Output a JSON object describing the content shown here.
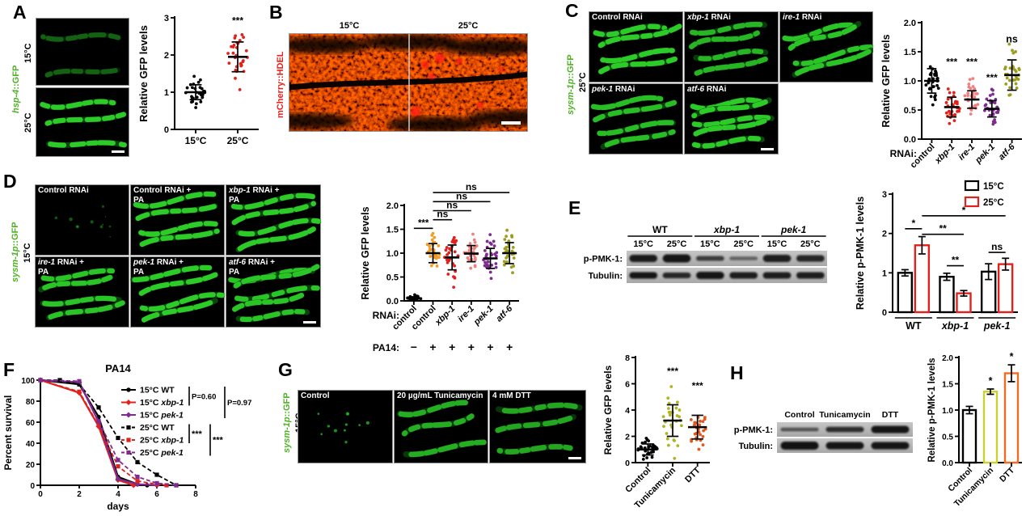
{
  "panels": {
    "A": {
      "letter": "A",
      "reporter": {
        "em": "hsp-4",
        "rest": "::GFP"
      },
      "reporter_color": "#4db324",
      "rows": [
        {
          "label": "15°C"
        },
        {
          "label": "25°C"
        }
      ]
    },
    "B": {
      "letter": "B",
      "reporter": {
        "em": "",
        "rest": "mCherry::HDEL"
      },
      "reporter_color": "#e8231f",
      "titles": [
        "15°C",
        "25°C"
      ]
    },
    "C": {
      "letter": "C",
      "reporter": {
        "em": "sysm-1p",
        "rest": "::GFP"
      },
      "reporter_color": "#4db324",
      "temp": "25°C",
      "cells": [
        {
          "em": "",
          "rest": "Control RNAi"
        },
        {
          "em": "xbp-1",
          "rest": " RNAi"
        },
        {
          "em": "ire-1",
          "rest": " RNAi"
        },
        {
          "em": "pek-1",
          "rest": " RNAi"
        },
        {
          "em": "atf-6",
          "rest": " RNAi"
        }
      ]
    },
    "D": {
      "letter": "D",
      "reporter": {
        "em": "sysm-1p",
        "rest": "::GFP"
      },
      "reporter_color": "#4db324",
      "temp": "15°C",
      "cells": [
        {
          "em": "",
          "rest": "Control RNAi"
        },
        {
          "em": "",
          "rest": "Control RNAi +",
          "line2": "PA"
        },
        {
          "em": "xbp-1",
          "rest": " RNAi +",
          "line2": "PA"
        },
        {
          "em": "ire-1",
          "rest": " RNAi +",
          "line2": "PA"
        },
        {
          "em": "pek-1",
          "rest": " RNAi +",
          "line2": "PA"
        },
        {
          "em": "atf-6",
          "rest": " RNAi +",
          "line2": "PA"
        }
      ]
    },
    "E": {
      "letter": "E",
      "blot": {
        "row_labels": [
          "p-PMK-1:",
          "Tubulin:"
        ],
        "groups": [
          {
            "name": "WT",
            "italic": false
          },
          {
            "name": "xbp-1",
            "italic": true
          },
          {
            "name": "pek-1",
            "italic": true
          }
        ],
        "lane_labels": [
          "15°C",
          "25°C"
        ],
        "bands": {
          "p_pmk1": {
            "th": [
              9,
              10,
              6,
              4.5,
              9,
              8
            ],
            "in": [
              0.92,
              0.95,
              0.72,
              0.5,
              0.9,
              0.85
            ]
          },
          "tubulin": {
            "th": [
              8,
              7,
              9,
              8,
              8,
              8
            ],
            "in": [
              0.95,
              0.85,
              0.95,
              0.9,
              0.9,
              0.9
            ]
          }
        }
      }
    },
    "F": {
      "letter": "F"
    },
    "G": {
      "letter": "G",
      "reporter": {
        "em": "sysm-1p",
        "rest": "::GFP"
      },
      "reporter_color": "#4db324",
      "temp": "15°C",
      "cells": [
        {
          "em": "",
          "rest": "Control"
        },
        {
          "em": "",
          "rest": "20 µg/mL Tunicamycin"
        },
        {
          "em": "",
          "rest": "4 mM DTT"
        }
      ]
    },
    "H": {
      "letter": "H",
      "blot": {
        "row_labels": [
          "p-PMK-1:",
          "Tubulin:"
        ],
        "lanes": [
          "Control",
          "Tunicamycin",
          "DTT"
        ],
        "bands": {
          "p_pmk1": {
            "th": [
              4.5,
              6.5,
              9
            ],
            "in": [
              0.6,
              0.82,
              0.95
            ]
          },
          "tubulin": {
            "th": [
              10,
              9,
              9
            ],
            "in": [
              0.97,
              0.95,
              0.95
            ]
          }
        }
      }
    }
  },
  "chart_data": {
    "A": {
      "type": "scatter",
      "ylabel": "Relative GFP levels",
      "ylim": [
        0,
        3
      ],
      "yticks": [
        0,
        1,
        2,
        3
      ],
      "ytick_labels": [
        "0",
        "1",
        "2",
        "3"
      ],
      "xstyle": "flat",
      "seed": 11,
      "groups": [
        {
          "label": "15°C",
          "italic": false,
          "color": "#000000",
          "mean": 1.0,
          "sd": 0.2,
          "n": 30
        },
        {
          "label": "25°C",
          "italic": false,
          "color": "#e2211c",
          "mean": 1.95,
          "sd": 0.4,
          "n": 30,
          "sig": "***",
          "sig_y": 2.84
        }
      ]
    },
    "C": {
      "type": "scatter",
      "ylabel": "Relative GFP levels",
      "ylim": [
        0,
        2
      ],
      "yticks": [
        0,
        0.5,
        1,
        1.5,
        2
      ],
      "ytick_labels": [
        "0.0",
        "0.5",
        "1.0",
        "1.5",
        "2.0"
      ],
      "xstyle": "rot",
      "xprefix": "RNAi:",
      "seed": 23,
      "groups": [
        {
          "label": "control",
          "italic": false,
          "color": "#000000",
          "mean": 1.0,
          "sd": 0.21,
          "n": 30
        },
        {
          "label": "xbp-1",
          "italic": true,
          "color": "#e2211c",
          "mean": 0.55,
          "sd": 0.17,
          "n": 30,
          "sig": "***",
          "sig_y": 1.27
        },
        {
          "label": "ire-1",
          "italic": true,
          "color": "#f08080",
          "mean": 0.68,
          "sd": 0.15,
          "n": 30,
          "sig": "***",
          "sig_y": 1.27
        },
        {
          "label": "pek-1",
          "italic": true,
          "color": "#7f2a8e",
          "mean": 0.52,
          "sd": 0.14,
          "n": 30,
          "sig": "***",
          "sig_y": 1.0
        },
        {
          "label": "atf-6",
          "italic": true,
          "color": "#9c9c1e",
          "mean": 1.1,
          "sd": 0.26,
          "n": 30,
          "sig": "ns",
          "sig_y": 1.66
        }
      ]
    },
    "D": {
      "type": "scatter",
      "ylabel": "Relative GFP levels",
      "ylim": [
        0,
        2
      ],
      "yticks": [
        0,
        0.5,
        1,
        1.5,
        2
      ],
      "ytick_labels": [
        "0.0",
        "0.5",
        "1.0",
        "1.5",
        "2.0"
      ],
      "xstyle": "rot",
      "xprefix": "RNAi:",
      "seed": 37,
      "groups": [
        {
          "label": "control",
          "italic": false,
          "color": "#000000",
          "mean": 0.05,
          "sd": 0.035,
          "n": 24
        },
        {
          "label": "control",
          "italic": false,
          "color": "#f49b27",
          "mean": 1.0,
          "sd": 0.2,
          "n": 30
        },
        {
          "label": "xbp-1",
          "italic": true,
          "color": "#e2211c",
          "mean": 0.91,
          "sd": 0.26,
          "n": 30
        },
        {
          "label": "ire-1",
          "italic": true,
          "color": "#f08080",
          "mean": 0.99,
          "sd": 0.17,
          "n": 30
        },
        {
          "label": "pek-1",
          "italic": true,
          "color": "#7f2a8e",
          "mean": 0.89,
          "sd": 0.21,
          "n": 30
        },
        {
          "label": "atf-6",
          "italic": true,
          "color": "#9c9c1e",
          "mean": 1.0,
          "sd": 0.22,
          "n": 30
        }
      ],
      "brackets": [
        {
          "a": 0,
          "b": 1,
          "y": 1.52,
          "t": "***"
        },
        {
          "a": 1,
          "b": 2,
          "y": 1.7,
          "t": "ns"
        },
        {
          "a": 1,
          "b": 3,
          "y": 1.89,
          "t": "ns"
        },
        {
          "a": 1,
          "b": 4,
          "y": 2.08,
          "t": "ns"
        },
        {
          "a": 1,
          "b": 5,
          "y": 2.27,
          "t": "ns"
        }
      ],
      "row2": {
        "label": "PA14:",
        "values": [
          "−",
          "+",
          "+",
          "+",
          "+",
          "+"
        ]
      }
    },
    "E": {
      "type": "grouped_bar",
      "ylabel": "Relative p-PMK-1 levels",
      "ylim": [
        0,
        3
      ],
      "yticks": [
        0,
        1,
        2,
        3
      ],
      "ytick_labels": [
        "0",
        "1",
        "2",
        "3"
      ],
      "categories": [
        {
          "label": "WT",
          "italic": false
        },
        {
          "label": "xbp-1",
          "italic": true
        },
        {
          "label": "pek-1",
          "italic": true
        }
      ],
      "series": [
        {
          "name": "15°C",
          "color": "#000000",
          "values": [
            1.0,
            0.9,
            1.03
          ],
          "errors": [
            0.08,
            0.09,
            0.2
          ]
        },
        {
          "name": "25°C",
          "color": "#e2211c",
          "values": [
            1.7,
            0.48,
            1.22
          ],
          "errors": [
            0.22,
            0.07,
            0.15
          ]
        }
      ],
      "brackets": [
        {
          "a": 0,
          "b": 1,
          "y": 2.12,
          "t": "*"
        },
        {
          "a": 1,
          "b": 3,
          "y": 1.98,
          "t": "**"
        },
        {
          "a": 1,
          "b": 5,
          "y": 2.45,
          "t": "*"
        },
        {
          "a": 2,
          "b": 3,
          "y": 1.18,
          "t": "**"
        },
        {
          "a": 4,
          "b": 5,
          "y": 1.52,
          "t": "ns"
        }
      ]
    },
    "F": {
      "type": "survival",
      "title": "PA14",
      "xlabel": "days",
      "ylabel": "Percent survival",
      "xlim": [
        0,
        8
      ],
      "xticks": [
        0,
        2,
        4,
        6,
        8
      ],
      "ylim": [
        0,
        100
      ],
      "yticks": [
        0,
        20,
        40,
        60,
        80,
        100
      ],
      "series": [
        {
          "pre": "15°C ",
          "gene": "WT",
          "italic": false,
          "color": "#000000",
          "dash": false,
          "marker": "circle",
          "x": [
            0,
            2,
            3,
            4,
            5,
            5.5
          ],
          "y": [
            100,
            96,
            65,
            8,
            1,
            0
          ]
        },
        {
          "pre": "15°C ",
          "gene": "xbp-1",
          "italic": true,
          "color": "#e2211c",
          "dash": false,
          "marker": "diamond",
          "x": [
            0,
            2,
            3,
            4,
            4.8
          ],
          "y": [
            100,
            88,
            56,
            5,
            0
          ]
        },
        {
          "pre": "15°C ",
          "gene": "pek-1",
          "italic": true,
          "color": "#7f2a8e",
          "dash": false,
          "marker": "diamond",
          "x": [
            0,
            2,
            3,
            4,
            5,
            6
          ],
          "y": [
            100,
            98,
            60,
            6,
            1,
            0
          ]
        },
        {
          "pre": "25°C ",
          "gene": "WT",
          "italic": false,
          "color": "#000000",
          "dash": true,
          "marker": "square",
          "x": [
            0,
            1,
            2,
            3,
            4,
            5,
            6,
            7
          ],
          "y": [
            100,
            100,
            96,
            74,
            45,
            22,
            10,
            0
          ]
        },
        {
          "pre": "25°C ",
          "gene": "xbp-1",
          "italic": true,
          "color": "#e2211c",
          "dash": true,
          "marker": "square",
          "x": [
            0,
            2,
            3,
            4,
            5,
            6,
            6.5
          ],
          "y": [
            100,
            89,
            57,
            18,
            4,
            1,
            0
          ]
        },
        {
          "pre": "25°C ",
          "gene": "pek-1",
          "italic": true,
          "color": "#7f2a8e",
          "dash": true,
          "marker": "square",
          "x": [
            0,
            2,
            3,
            4,
            5,
            6,
            7
          ],
          "y": [
            100,
            99,
            61,
            24,
            8,
            2,
            0
          ]
        }
      ],
      "legend_brackets": [
        {
          "from": 0,
          "to": 1,
          "label": "P=0.60",
          "col": 0
        },
        {
          "from": 0,
          "to": 2,
          "label": "P=0.97",
          "col": 1
        },
        {
          "from": 3,
          "to": 4,
          "label": "***",
          "col": 0
        },
        {
          "from": 3,
          "to": 5,
          "label": "***",
          "col": 1
        }
      ]
    },
    "G": {
      "type": "scatter",
      "ylabel": "Relative GFP levels",
      "ylim": [
        0,
        8
      ],
      "yticks": [
        0,
        2,
        4,
        6,
        8
      ],
      "ytick_labels": [
        "0",
        "2",
        "4",
        "6",
        "8"
      ],
      "xstyle": "rot",
      "seed": 51,
      "groups": [
        {
          "label": "Control",
          "italic": false,
          "color": "#000000",
          "mean": 1.0,
          "sd": 0.42,
          "n": 28
        },
        {
          "label": "Tunicamycin",
          "italic": false,
          "color": "#b0b51f",
          "mean": 3.2,
          "sd": 1.2,
          "n": 28,
          "sig": "***",
          "sig_y": 6.7
        },
        {
          "label": "DTT",
          "italic": false,
          "color": "#e2571f",
          "mean": 2.7,
          "sd": 0.9,
          "n": 28,
          "sig": "***",
          "sig_y": 5.6
        }
      ]
    },
    "H": {
      "type": "bar",
      "ylabel": "Relative p-PMK-1 levels",
      "ylim": [
        0,
        2
      ],
      "yticks": [
        0,
        0.5,
        1,
        1.5,
        2
      ],
      "ytick_labels": [
        "0.0",
        "0.5",
        "1.0",
        "1.5",
        "2.0"
      ],
      "bars": [
        {
          "label": "Control",
          "color": "#000000",
          "value": 1.0,
          "err": 0.07
        },
        {
          "label": "Tunicamycin",
          "color": "#ccd22d",
          "value": 1.35,
          "err": 0.05,
          "sig": "*"
        },
        {
          "label": "DTT",
          "color": "#f26b22",
          "value": 1.7,
          "err": 0.16,
          "sig": "*"
        }
      ]
    }
  }
}
